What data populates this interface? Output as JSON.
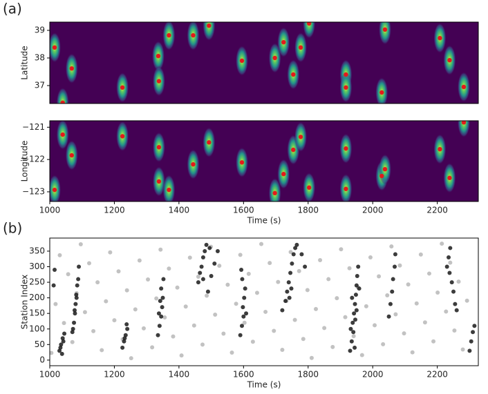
{
  "panel_labels": [
    "(a)",
    "(b)"
  ],
  "chart_data": [
    {
      "type": "heatmap",
      "ylabel": "Latitude",
      "background": "#440154",
      "color": "#e41a1c",
      "x": [
        1015,
        1040,
        1068,
        1225,
        1336,
        1338,
        1369,
        1444,
        1493,
        1595,
        1697,
        1724,
        1754,
        1777,
        1803,
        1917,
        1917,
        2028,
        2038,
        2208,
        2238,
        2282
      ],
      "values": [
        38.38,
        36.38,
        37.62,
        36.93,
        38.07,
        37.16,
        38.82,
        38.82,
        39.17,
        37.9,
        38.0,
        38.57,
        37.4,
        38.38,
        39.25,
        37.4,
        36.93,
        36.75,
        39.03,
        38.72,
        37.92,
        36.95
      ],
      "xlim": [
        1000,
        2327
      ],
      "ylim": [
        36.35,
        39.3
      ],
      "yticks": [
        37,
        38,
        39
      ]
    },
    {
      "type": "heatmap",
      "ylabel": "Longitude",
      "xlabel": "Time (s)",
      "background": "#440154",
      "color": "#e41a1c",
      "x": [
        1015,
        1040,
        1068,
        1225,
        1338,
        1338,
        1369,
        1444,
        1493,
        1595,
        1697,
        1724,
        1754,
        1777,
        1803,
        1917,
        1917,
        2028,
        2038,
        2208,
        2238,
        2282
      ],
      "values": [
        -122.94,
        -121.23,
        -121.87,
        -121.28,
        -121.62,
        -122.68,
        -122.94,
        -122.15,
        -121.47,
        -122.09,
        -123.04,
        -122.45,
        -121.7,
        -121.3,
        -122.87,
        -121.66,
        -122.91,
        -122.51,
        -122.3,
        -121.68,
        -122.57,
        -120.85
      ],
      "xlim": [
        1000,
        2327
      ],
      "ylim": [
        -123.3,
        -120.8
      ],
      "yticks": [
        {
          "value": -121,
          "label": "−121"
        },
        {
          "value": -122,
          "label": "−122"
        },
        {
          "value": -123,
          "label": "−123"
        }
      ],
      "xticks": [
        1000,
        1200,
        1400,
        1600,
        1800,
        2000,
        2200
      ]
    },
    {
      "type": "scatter",
      "ylabel": "Station Index",
      "xlabel": "Time (s)",
      "xlim": [
        1000,
        2327
      ],
      "ylim": [
        -18,
        392
      ],
      "xticks": [
        1000,
        1200,
        1400,
        1600,
        1800,
        2000,
        2200
      ],
      "yticks": [
        0,
        50,
        100,
        150,
        200,
        250,
        300,
        350
      ],
      "series": [
        {
          "color": "#9a9a9a",
          "x": [
            1005,
            1018,
            1031,
            1044,
            1057,
            1070,
            1083,
            1096,
            1109,
            1122,
            1135,
            1148,
            1161,
            1174,
            1187,
            1200,
            1213,
            1226,
            1239,
            1252,
            1265,
            1278,
            1291,
            1304,
            1317,
            1330,
            1343,
            1356,
            1369,
            1382,
            1395,
            1408,
            1421,
            1434,
            1447,
            1460,
            1473,
            1486,
            1499,
            1512,
            1525,
            1538,
            1551,
            1564,
            1577,
            1590,
            1603,
            1616,
            1629,
            1642,
            1655,
            1668,
            1681,
            1694,
            1707,
            1720,
            1733,
            1746,
            1759,
            1772,
            1785,
            1798,
            1811,
            1824,
            1837,
            1850,
            1863,
            1876,
            1889,
            1902,
            1915,
            1928,
            1941,
            1954,
            1967,
            1980,
            1993,
            2006,
            2019,
            2032,
            2045,
            2058,
            2071,
            2084,
            2097,
            2110,
            2123,
            2136,
            2149,
            2162,
            2175,
            2188,
            2201,
            2214,
            2227,
            2240,
            2253,
            2266,
            2279,
            2292
          ],
          "values": [
            23,
            180,
            337,
            119,
            276,
            58,
            215,
            372,
            154,
            311,
            93,
            250,
            32,
            189,
            346,
            128,
            285,
            67,
            224,
            6,
            163,
            320,
            102,
            259,
            41,
            198,
            355,
            137,
            294,
            76,
            233,
            15,
            172,
            329,
            111,
            268,
            50,
            207,
            364,
            146,
            303,
            85,
            242,
            24,
            181,
            338,
            120,
            277,
            59,
            216,
            373,
            155,
            312,
            94,
            251,
            33,
            190,
            347,
            129,
            286,
            68,
            225,
            7,
            164,
            321,
            103,
            260,
            42,
            199,
            356,
            138,
            295,
            77,
            234,
            16,
            173,
            330,
            112,
            269,
            51,
            208,
            365,
            147,
            304,
            86,
            243,
            25,
            182,
            339,
            121,
            278,
            60,
            217,
            374,
            156,
            313,
            95,
            252,
            34,
            191
          ]
        },
        {
          "color": "#1a1a1a",
          "x": [
            1030,
            1035,
            1040,
            1045,
            1038,
            1042,
            1033,
            1070,
            1075,
            1078,
            1080,
            1082,
            1085,
            1072,
            1077,
            1083,
            1088,
            1090,
            1012,
            1015,
            1225,
            1230,
            1235,
            1240,
            1232,
            1238,
            1335,
            1340,
            1345,
            1348,
            1350,
            1345,
            1352,
            1342,
            1338,
            1460,
            1465,
            1470,
            1475,
            1480,
            1485,
            1490,
            1500,
            1510,
            1520,
            1475,
            1495,
            1590,
            1595,
            1600,
            1598,
            1602,
            1605,
            1596,
            1593,
            1608,
            1720,
            1730,
            1735,
            1740,
            1745,
            1750,
            1755,
            1760,
            1765,
            1742,
            1748,
            1780,
            1790,
            1930,
            1935,
            1940,
            1938,
            1942,
            1945,
            1948,
            1950,
            1952,
            1955,
            1932,
            1946,
            1936,
            1944,
            1950,
            1958,
            2050,
            2055,
            2060,
            2063,
            2068,
            2070,
            2230,
            2235,
            2240,
            2245,
            2250,
            2255,
            2260,
            2238,
            2300,
            2305,
            2310,
            2315
          ],
          "values": [
            30,
            50,
            70,
            85,
            20,
            60,
            40,
            90,
            120,
            150,
            180,
            210,
            240,
            100,
            160,
            200,
            260,
            300,
            240,
            290,
            40,
            60,
            80,
            100,
            70,
            115,
            80,
            110,
            140,
            170,
            200,
            230,
            260,
            190,
            150,
            250,
            280,
            300,
            330,
            350,
            370,
            220,
            270,
            310,
            350,
            260,
            360,
            80,
            110,
            140,
            170,
            200,
            230,
            260,
            290,
            150,
            160,
            190,
            220,
            250,
            280,
            310,
            340,
            360,
            370,
            200,
            230,
            340,
            300,
            30,
            60,
            90,
            120,
            150,
            180,
            210,
            240,
            270,
            300,
            100,
            130,
            200,
            40,
            160,
            230,
            140,
            180,
            220,
            260,
            300,
            340,
            300,
            330,
            360,
            250,
            220,
            180,
            160,
            280,
            30,
            60,
            90,
            110
          ]
        }
      ]
    }
  ]
}
